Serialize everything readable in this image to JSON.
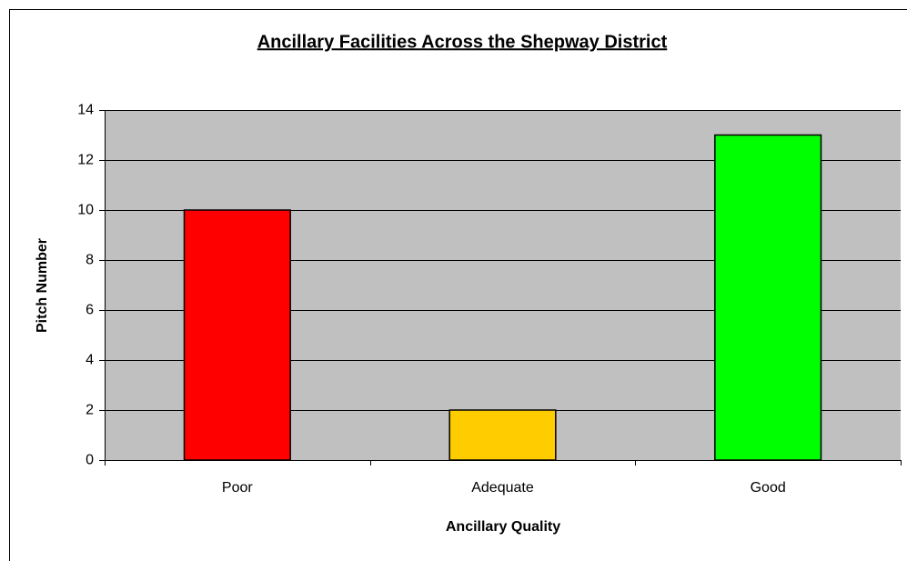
{
  "chart_data": {
    "type": "bar",
    "title": "Ancillary Facilities Across the Shepway District",
    "x_label": "Ancillary Quality",
    "y_label": "Pitch Number",
    "categories": [
      "Poor",
      "Adequate",
      "Good"
    ],
    "values": [
      10,
      2,
      13
    ],
    "colors": [
      "#ff0000",
      "#ffcc00",
      "#00ff00"
    ],
    "ylim": [
      0,
      14
    ],
    "yticks": [
      0,
      2,
      4,
      6,
      8,
      10,
      12,
      14
    ],
    "grid": true
  }
}
